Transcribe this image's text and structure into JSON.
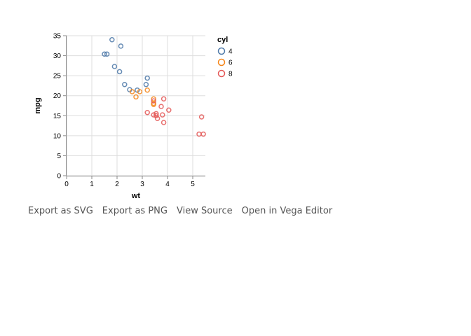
{
  "chart_data": {
    "type": "scatter",
    "xlabel": "wt",
    "ylabel": "mpg",
    "xlim": [
      0,
      5.5
    ],
    "ylim": [
      0,
      35
    ],
    "x_ticks": [
      0,
      1,
      2,
      3,
      4,
      5
    ],
    "y_ticks": [
      0,
      5,
      10,
      15,
      20,
      25,
      30,
      35
    ],
    "grid": true,
    "legend_title": "cyl",
    "legend_position": "right",
    "marker": "open-circle",
    "series": [
      {
        "name": "4",
        "color": "#4c78a8",
        "points": [
          [
            1.8,
            34.0
          ],
          [
            2.15,
            32.4
          ],
          [
            1.5,
            30.4
          ],
          [
            1.6,
            30.4
          ],
          [
            1.9,
            27.3
          ],
          [
            2.1,
            26.0
          ],
          [
            3.2,
            24.4
          ],
          [
            3.15,
            22.8
          ],
          [
            2.3,
            22.8
          ],
          [
            2.5,
            21.5
          ],
          [
            2.8,
            21.4
          ]
        ]
      },
      {
        "name": "6",
        "color": "#f58518",
        "points": [
          [
            2.6,
            21.0
          ],
          [
            2.9,
            21.0
          ],
          [
            3.2,
            21.4
          ],
          [
            2.75,
            19.7
          ],
          [
            3.45,
            19.2
          ],
          [
            3.45,
            18.1
          ],
          [
            3.45,
            17.8
          ]
        ]
      },
      {
        "name": "8",
        "color": "#e45756",
        "points": [
          [
            3.85,
            19.2
          ],
          [
            3.45,
            18.7
          ],
          [
            4.05,
            16.4
          ],
          [
            3.75,
            17.3
          ],
          [
            3.2,
            15.8
          ],
          [
            3.45,
            15.2
          ],
          [
            3.55,
            15.5
          ],
          [
            3.8,
            15.2
          ],
          [
            3.55,
            15.0
          ],
          [
            3.6,
            14.3
          ],
          [
            5.35,
            14.7
          ],
          [
            3.85,
            13.3
          ],
          [
            5.25,
            10.4
          ],
          [
            5.42,
            10.4
          ]
        ]
      }
    ]
  },
  "actions": {
    "export_svg": "Export as SVG",
    "export_png": "Export as PNG",
    "view_source": "View Source",
    "open_editor": "Open in Vega Editor"
  }
}
